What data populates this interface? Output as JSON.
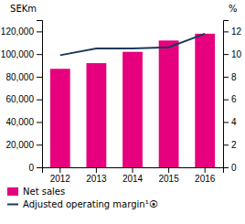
{
  "chart_data": {
    "type": "bar",
    "categories": [
      "2012",
      "2013",
      "2014",
      "2015",
      "2016"
    ],
    "series": [
      {
        "name": "Net sales",
        "type": "bar",
        "color": "#e6007e",
        "values": [
          87000,
          92000,
          102000,
          112000,
          118000
        ]
      },
      {
        "name": "Adjusted operating margin¹⦿",
        "type": "line",
        "color": "#1a3a5c",
        "axis": "y2",
        "values": [
          9.9,
          10.5,
          10.5,
          10.6,
          11.8
        ]
      }
    ],
    "ylabel": "SEKm",
    "y2label": "%",
    "ylim": [
      0,
      130000
    ],
    "yticks": [
      0,
      {
        "value": 20000,
        "label": "20,000"
      },
      {
        "value": 40000,
        "label": "40,000"
      },
      {
        "value": 60000,
        "label": "60,000"
      },
      {
        "value": 80000,
        "label": "80,000"
      },
      {
        "value": 100000,
        "label": "100,000"
      },
      {
        "value": 120000,
        "label": "120,000"
      }
    ],
    "y2lim": [
      0,
      13
    ],
    "y2ticks": [
      0,
      2,
      4,
      6,
      8,
      10,
      12
    ],
    "grid": false,
    "legend": "bottom"
  }
}
